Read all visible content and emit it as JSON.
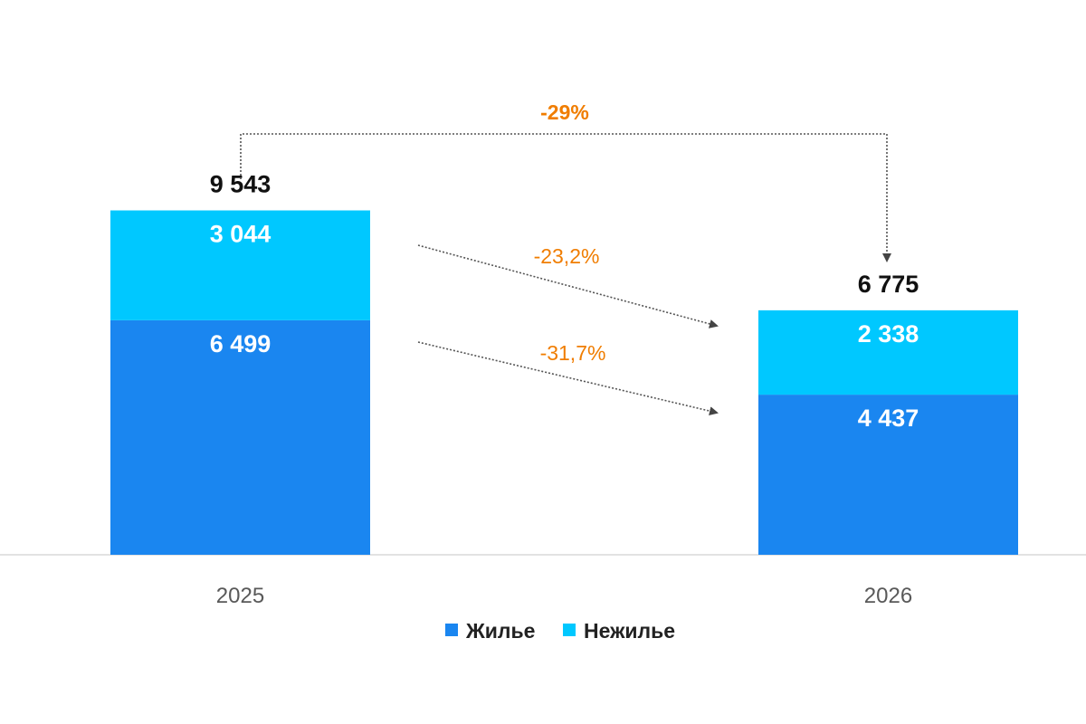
{
  "chart_data": {
    "type": "bar",
    "stacked": true,
    "categories": [
      "2025",
      "2026"
    ],
    "series": [
      {
        "name": "Жилье",
        "values": [
          6499,
          4437
        ],
        "labels": [
          "6 499",
          "4 437"
        ],
        "color": "#1a86f0"
      },
      {
        "name": "Нежилье",
        "values": [
          3044,
          2338
        ],
        "labels": [
          "3 044",
          "2 338"
        ],
        "color": "#00c8ff"
      }
    ],
    "totals": [
      9543,
      6775
    ],
    "total_labels": [
      "9 543",
      "6 775"
    ],
    "changes": {
      "total": "-29%",
      "nonresidential": "-23,2%",
      "residential": "-31,7%"
    },
    "change_color": "#f07d00",
    "legend_position": "bottom",
    "grid": false
  }
}
